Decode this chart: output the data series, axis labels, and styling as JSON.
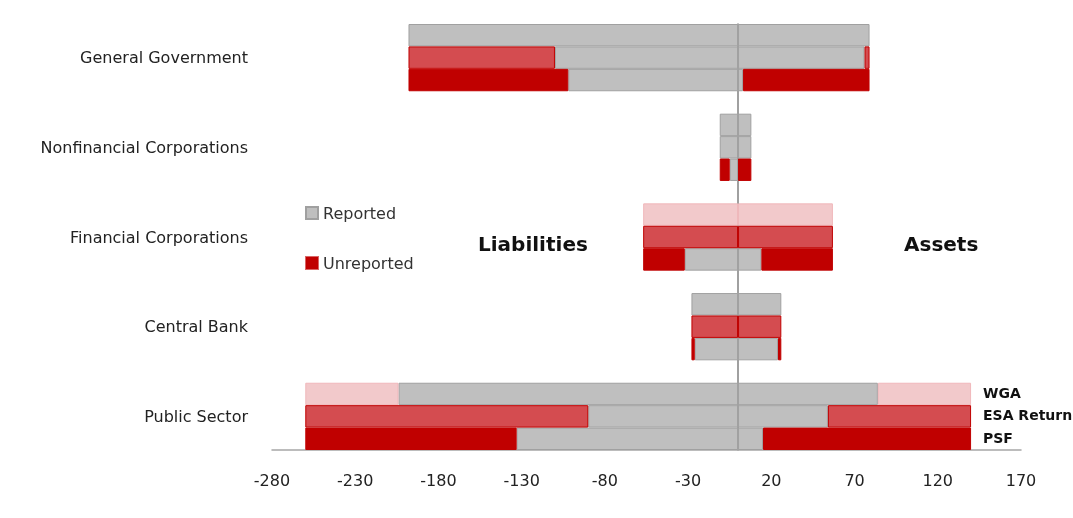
{
  "chart_data": {
    "type": "bar",
    "orientation": "horizontal",
    "stacked": true,
    "categories": [
      null,
      "General Government",
      null,
      null,
      null,
      "Nonfinancial Corporations",
      null,
      null,
      null,
      "Financial Corporations",
      null,
      null,
      null,
      "Central Bank",
      null,
      null,
      null,
      "Public Sector",
      null
    ],
    "series": [
      {
        "name": "Reported",
        "color": "#bfbfbf",
        "values": [
          -198,
          -110,
          -102,
          null,
          -11,
          -11,
          -5,
          null,
          null,
          null,
          -32,
          null,
          -28,
          null,
          -26,
          null,
          -204,
          -90,
          -133
        ]
      },
      {
        "name": "Unreported",
        "color": "#c00000",
        "values": [
          null,
          -88,
          -96,
          null,
          null,
          null,
          -6,
          null,
          -57,
          -57,
          -25,
          null,
          null,
          -28,
          -2,
          null,
          -56,
          -170,
          -127
        ],
        "colors": [
          null,
          "#d44c50",
          "#c00000",
          null,
          null,
          null,
          "#c00000",
          null,
          "#f2c9cb",
          "#d44c50",
          "#c00000",
          null,
          null,
          "#d44c50",
          "#c00000",
          null,
          "#f2c9cb",
          "#d44c50",
          "#c00000"
        ]
      },
      {
        "color": "#bfbfbf",
        "values": [
          79,
          76,
          3,
          null,
          8,
          8,
          null,
          null,
          null,
          null,
          14,
          null,
          26,
          null,
          24,
          null,
          84,
          54,
          15
        ]
      },
      {
        "color": "#c00000",
        "values": [
          null,
          3,
          76,
          null,
          null,
          null,
          8,
          null,
          57,
          57,
          43,
          null,
          null,
          26,
          2,
          null,
          56,
          86,
          125
        ],
        "colors": [
          null,
          "#d44c50",
          "#c00000",
          null,
          null,
          null,
          "#c00000",
          null,
          "#f2c9cb",
          "#d44c50",
          "#c00000",
          null,
          null,
          "#d44c50",
          "#c00000",
          null,
          "#f2c9cb",
          "#d44c50",
          "#c00000"
        ]
      }
    ],
    "xlim": [
      -280,
      170
    ],
    "xticks": [
      -280,
      -230,
      -180,
      -130,
      -80,
      -30,
      20,
      70,
      120,
      170
    ],
    "grid": false,
    "legend": "left",
    "annotations": [
      "Liabilities",
      "Assets",
      "WGA",
      "ESA Return",
      "PSF"
    ]
  }
}
